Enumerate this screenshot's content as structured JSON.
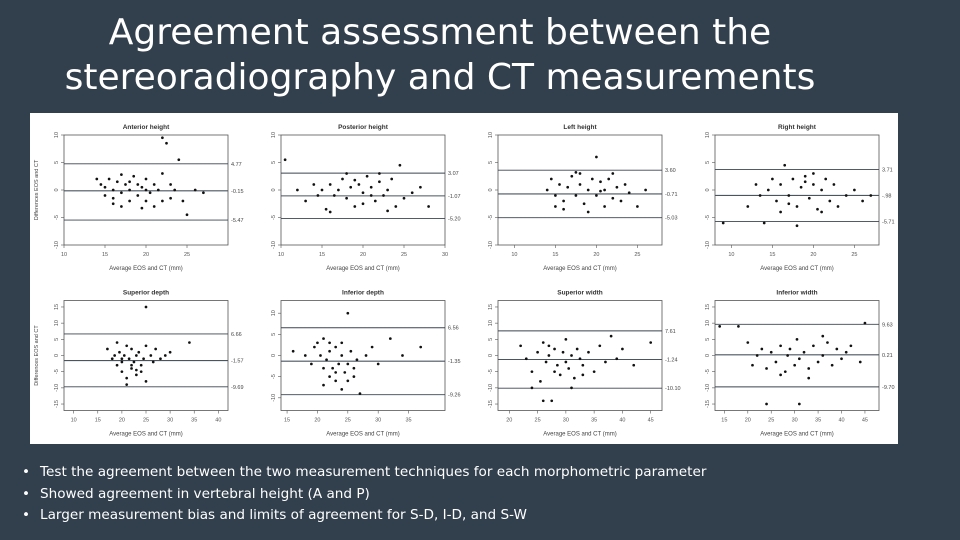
{
  "title_line1": "Agreement assessment between the",
  "title_line2": "stereoradiography and CT measurements",
  "bullets": [
    "Test the agreement between the two measurement techniques for each morphometric parameter",
    "Showed agreement in vertebral height (A and P)",
    "Larger measurement bias and limits of agreement for S-D, I-D, and S-W"
  ],
  "colors": {
    "background": "#323f4d",
    "text": "#ffffff",
    "points": "#111111",
    "bias_line": "#4a5560",
    "loa_line": "#3a4550"
  },
  "chart_data": [
    {
      "type": "scatter",
      "title": "Anterior height",
      "xlabel": "Average EOS and CT (mm)",
      "ylabel": "Differences EOS and CT",
      "xlim": [
        10,
        30
      ],
      "ylim": [
        -10,
        10
      ],
      "xticks": [
        "10",
        "15",
        "20",
        "25"
      ],
      "yticks": [
        "-10",
        "-5",
        "0",
        "5",
        "10"
      ],
      "lines": [
        {
          "y": 4.77,
          "label": "4.77"
        },
        {
          "y": -0.15,
          "label": "-0.15"
        },
        {
          "y": -5.47,
          "label": "-5.47"
        }
      ],
      "points": [
        [
          14,
          2
        ],
        [
          14.5,
          1
        ],
        [
          15,
          0.5
        ],
        [
          15,
          -1
        ],
        [
          15.5,
          2
        ],
        [
          16,
          0
        ],
        [
          16,
          -1.5
        ],
        [
          16.5,
          1.5
        ],
        [
          17,
          -0.5
        ],
        [
          17,
          -3
        ],
        [
          17.5,
          1
        ],
        [
          18,
          0
        ],
        [
          18,
          -2
        ],
        [
          18.5,
          2.5
        ],
        [
          19,
          -1
        ],
        [
          19,
          1
        ],
        [
          19.5,
          0.5
        ],
        [
          20,
          -2
        ],
        [
          20,
          2
        ],
        [
          20.5,
          -0.5
        ],
        [
          21,
          1
        ],
        [
          21,
          -3
        ],
        [
          21.5,
          0
        ],
        [
          22,
          9.5
        ],
        [
          22.5,
          8.5
        ],
        [
          22,
          3
        ],
        [
          23,
          1
        ],
        [
          23,
          -1.5
        ],
        [
          23.5,
          0
        ],
        [
          24,
          5.5
        ],
        [
          24.5,
          -2
        ],
        [
          25,
          -4.5
        ],
        [
          26,
          0
        ],
        [
          27,
          -0.5
        ],
        [
          16,
          -2.5
        ],
        [
          18,
          1.5
        ],
        [
          20,
          0
        ],
        [
          22,
          -2
        ],
        [
          17,
          2.8
        ],
        [
          19.5,
          -3.3
        ]
      ]
    },
    {
      "type": "scatter",
      "title": "Posterior height",
      "xlabel": "Average EOS and CT (mm)",
      "ylabel": "",
      "xlim": [
        10,
        30
      ],
      "ylim": [
        -10,
        10
      ],
      "xticks": [
        "10",
        "15",
        "20",
        "25",
        "30"
      ],
      "yticks": [
        "-10",
        "-5",
        "0",
        "5",
        "10"
      ],
      "lines": [
        {
          "y": 3.07,
          "label": "3.07"
        },
        {
          "y": -1.07,
          "label": "-1.07"
        },
        {
          "y": -5.2,
          "label": "-5.20"
        }
      ],
      "points": [
        [
          10.5,
          5.5
        ],
        [
          12,
          0
        ],
        [
          13,
          -2
        ],
        [
          14,
          1
        ],
        [
          14.5,
          -1
        ],
        [
          15,
          0
        ],
        [
          15.5,
          -3.5
        ],
        [
          16,
          1
        ],
        [
          16.5,
          -1
        ],
        [
          17,
          0
        ],
        [
          17.5,
          2
        ],
        [
          18,
          -1.5
        ],
        [
          18.5,
          0.5
        ],
        [
          19,
          -3
        ],
        [
          19.5,
          1
        ],
        [
          20,
          -0.5
        ],
        [
          20.5,
          2.5
        ],
        [
          21,
          -1
        ],
        [
          21,
          0.5
        ],
        [
          21.5,
          -2
        ],
        [
          22,
          1.5
        ],
        [
          22.5,
          -1
        ],
        [
          23,
          0
        ],
        [
          23.5,
          2
        ],
        [
          24,
          -3
        ],
        [
          24.5,
          4.5
        ],
        [
          25,
          -1.5
        ],
        [
          26,
          -0.5
        ],
        [
          27,
          0.5
        ],
        [
          28,
          -3
        ],
        [
          16,
          -4
        ],
        [
          18,
          3
        ],
        [
          20,
          -2.5
        ],
        [
          22,
          3
        ],
        [
          19,
          1.8
        ],
        [
          23,
          -3.8
        ]
      ]
    },
    {
      "type": "scatter",
      "title": "Left height",
      "xlabel": "Average EOS and CT (mm)",
      "ylabel": "",
      "xlim": [
        8,
        28
      ],
      "ylim": [
        -10,
        10
      ],
      "xticks": [
        "10",
        "15",
        "20",
        "25"
      ],
      "yticks": [
        "-10",
        "-5",
        "0",
        "5",
        "10"
      ],
      "lines": [
        {
          "y": 3.6,
          "label": "3.60"
        },
        {
          "y": -0.71,
          "label": "-0.71"
        },
        {
          "y": -5.03,
          "label": "-5.03"
        }
      ],
      "points": [
        [
          14,
          0
        ],
        [
          14.5,
          2
        ],
        [
          15,
          -1
        ],
        [
          15.5,
          1
        ],
        [
          16,
          -2
        ],
        [
          16.5,
          0.5
        ],
        [
          17,
          2.5
        ],
        [
          17.5,
          -1
        ],
        [
          18,
          1
        ],
        [
          18.5,
          -2.5
        ],
        [
          19,
          0
        ],
        [
          19.5,
          2
        ],
        [
          20,
          -1
        ],
        [
          20,
          6
        ],
        [
          20.5,
          1.5
        ],
        [
          21,
          -3
        ],
        [
          21,
          0
        ],
        [
          21.5,
          2
        ],
        [
          22,
          -1.5
        ],
        [
          22.5,
          0.5
        ],
        [
          23,
          -2
        ],
        [
          23.5,
          1
        ],
        [
          24,
          -0.5
        ],
        [
          25,
          -3
        ],
        [
          26,
          0
        ],
        [
          16,
          -3.5
        ],
        [
          18,
          3
        ],
        [
          19,
          -4
        ],
        [
          20.5,
          -0.2
        ],
        [
          17.5,
          3.2
        ],
        [
          22,
          3
        ],
        [
          15,
          -3
        ]
      ]
    },
    {
      "type": "scatter",
      "title": "Right height",
      "xlabel": "Average EOS and CT (mm)",
      "ylabel": "",
      "xlim": [
        8,
        28
      ],
      "ylim": [
        -10,
        10
      ],
      "xticks": [
        "10",
        "15",
        "20",
        "25"
      ],
      "yticks": [
        "-10",
        "-5",
        "0",
        "5",
        "10"
      ],
      "lines": [
        {
          "y": 3.71,
          "label": "3.71"
        },
        {
          "y": -0.98,
          "label": "-.98"
        },
        {
          "y": -5.71,
          "label": "-5.71"
        }
      ],
      "points": [
        [
          9,
          -6
        ],
        [
          12,
          -3
        ],
        [
          13,
          1
        ],
        [
          13.5,
          -1
        ],
        [
          14,
          -6
        ],
        [
          14.5,
          0
        ],
        [
          15,
          2
        ],
        [
          15.5,
          -2
        ],
        [
          16,
          1
        ],
        [
          16.5,
          4.5
        ],
        [
          17,
          -1
        ],
        [
          17.5,
          2
        ],
        [
          18,
          -3
        ],
        [
          18.5,
          0.5
        ],
        [
          19,
          2.5
        ],
        [
          19.5,
          -1.5
        ],
        [
          20,
          1
        ],
        [
          20.5,
          -3.5
        ],
        [
          21,
          0
        ],
        [
          21.5,
          2
        ],
        [
          22,
          -2
        ],
        [
          22.5,
          1
        ],
        [
          23,
          -3
        ],
        [
          24,
          -1
        ],
        [
          25,
          0
        ],
        [
          26,
          -2
        ],
        [
          27,
          -1
        ],
        [
          16,
          -4
        ],
        [
          18,
          -6.5
        ],
        [
          20,
          3
        ],
        [
          21,
          -4
        ],
        [
          19,
          1.5
        ],
        [
          17,
          -2.5
        ]
      ]
    },
    {
      "type": "scatter",
      "title": "Superior depth",
      "xlabel": "Average EOS and CT (mm)",
      "ylabel": "Differences EOS and CT",
      "xlim": [
        8,
        42
      ],
      "ylim": [
        -17,
        17
      ],
      "xticks": [
        "10",
        "15",
        "20",
        "25",
        "30",
        "35",
        "40"
      ],
      "yticks": [
        "-15",
        "-10",
        "-5",
        "0",
        "5",
        "10",
        "15"
      ],
      "lines": [
        {
          "y": 6.66,
          "label": "6.66"
        },
        {
          "y": -1.57,
          "label": "-1.57"
        },
        {
          "y": -9.69,
          "label": "-9.69"
        }
      ],
      "points": [
        [
          17,
          2
        ],
        [
          18,
          -1
        ],
        [
          18.5,
          0
        ],
        [
          19,
          -3
        ],
        [
          19.5,
          1
        ],
        [
          20,
          -2
        ],
        [
          20,
          -5
        ],
        [
          20.5,
          0
        ],
        [
          21,
          3
        ],
        [
          21,
          -7
        ],
        [
          21.5,
          -1
        ],
        [
          22,
          -4
        ],
        [
          22,
          2
        ],
        [
          22.5,
          -2
        ],
        [
          23,
          0
        ],
        [
          23,
          -6
        ],
        [
          23.5,
          1
        ],
        [
          24,
          -3
        ],
        [
          24.5,
          -1
        ],
        [
          25,
          -8
        ],
        [
          25,
          15
        ],
        [
          26,
          0
        ],
        [
          26.5,
          -2
        ],
        [
          27,
          2
        ],
        [
          28,
          -1
        ],
        [
          29,
          0
        ],
        [
          30,
          1
        ],
        [
          34,
          4
        ],
        [
          19,
          4
        ],
        [
          21,
          -9
        ],
        [
          22,
          -3
        ],
        [
          24,
          -5
        ],
        [
          20,
          -1
        ],
        [
          23,
          -4.5
        ],
        [
          25,
          3
        ]
      ]
    },
    {
      "type": "scatter",
      "title": "Inferior depth",
      "xlabel": "Average EOS and CT (mm)",
      "ylabel": "",
      "xlim": [
        14,
        41
      ],
      "ylim": [
        -13,
        13
      ],
      "xticks": [
        "15",
        "20",
        "25",
        "30",
        "35"
      ],
      "yticks": [
        "-10",
        "-5",
        "0",
        "5",
        "10"
      ],
      "lines": [
        {
          "y": 6.56,
          "label": "6.56"
        },
        {
          "y": -1.35,
          "label": "-1.35"
        },
        {
          "y": -9.26,
          "label": "-9.26"
        }
      ],
      "points": [
        [
          16,
          1
        ],
        [
          18,
          0
        ],
        [
          19,
          -2
        ],
        [
          19.5,
          2
        ],
        [
          20,
          3
        ],
        [
          20.5,
          0
        ],
        [
          21,
          -3
        ],
        [
          21,
          4
        ],
        [
          21.5,
          -1
        ],
        [
          22,
          -5
        ],
        [
          22,
          1
        ],
        [
          22.5,
          -3
        ],
        [
          23,
          -6
        ],
        [
          23,
          2
        ],
        [
          23.5,
          -2
        ],
        [
          24,
          -8
        ],
        [
          24,
          0
        ],
        [
          24.5,
          -4
        ],
        [
          25,
          10
        ],
        [
          25,
          -6
        ],
        [
          25.5,
          1
        ],
        [
          26,
          -3
        ],
        [
          26.5,
          -1
        ],
        [
          27,
          -9
        ],
        [
          28,
          0
        ],
        [
          29,
          2
        ],
        [
          30,
          -2
        ],
        [
          32,
          4
        ],
        [
          34,
          0
        ],
        [
          37,
          2
        ],
        [
          22,
          3
        ],
        [
          23,
          -4
        ],
        [
          25,
          -2
        ],
        [
          24,
          3
        ],
        [
          26,
          -5
        ],
        [
          21,
          -7
        ]
      ]
    },
    {
      "type": "scatter",
      "title": "Superior width",
      "xlabel": "Average EOS and CT (mm)",
      "ylabel": "",
      "xlim": [
        18,
        47
      ],
      "ylim": [
        -17,
        17
      ],
      "xticks": [
        "20",
        "25",
        "30",
        "35",
        "40",
        "45"
      ],
      "yticks": [
        "-15",
        "-10",
        "-5",
        "0",
        "5",
        "10",
        "15"
      ],
      "lines": [
        {
          "y": 7.61,
          "label": "7.61"
        },
        {
          "y": -1.24,
          "label": "-1.24"
        },
        {
          "y": -10.1,
          "label": "-10.10"
        }
      ],
      "points": [
        [
          22,
          3
        ],
        [
          23,
          -1
        ],
        [
          24,
          -5
        ],
        [
          25,
          1
        ],
        [
          25.5,
          -8
        ],
        [
          26,
          4
        ],
        [
          26.5,
          -2
        ],
        [
          27,
          0
        ],
        [
          27.5,
          -14
        ],
        [
          28,
          2
        ],
        [
          28.5,
          -3
        ],
        [
          29,
          -6
        ],
        [
          29.5,
          1
        ],
        [
          30,
          -2
        ],
        [
          30,
          5
        ],
        [
          30.5,
          -4
        ],
        [
          31,
          0
        ],
        [
          31.5,
          -7
        ],
        [
          32,
          2
        ],
        [
          32.5,
          -1
        ],
        [
          33,
          -3
        ],
        [
          34,
          1
        ],
        [
          35,
          -5
        ],
        [
          36,
          3
        ],
        [
          37,
          -2
        ],
        [
          38,
          6
        ],
        [
          39,
          -1
        ],
        [
          40,
          2
        ],
        [
          42,
          -3
        ],
        [
          45,
          4
        ],
        [
          26,
          -14
        ],
        [
          24,
          -10
        ],
        [
          31,
          -10
        ],
        [
          28,
          -5
        ],
        [
          33,
          -6
        ],
        [
          27,
          3
        ]
      ]
    },
    {
      "type": "scatter",
      "title": "Inferior width",
      "xlabel": "Average EOS and CT (mm)",
      "ylabel": "",
      "xlim": [
        13,
        48
      ],
      "ylim": [
        -17,
        17
      ],
      "xticks": [
        "15",
        "20",
        "25",
        "30",
        "35",
        "40",
        "45"
      ],
      "yticks": [
        "-15",
        "-10",
        "-5",
        "0",
        "5",
        "10",
        "15"
      ],
      "lines": [
        {
          "y": 9.63,
          "label": "9.63"
        },
        {
          "y": 0.21,
          "label": "0.21"
        },
        {
          "y": -9.7,
          "label": "-9.70"
        }
      ],
      "points": [
        [
          14,
          9
        ],
        [
          18,
          9
        ],
        [
          20,
          4
        ],
        [
          21,
          -3
        ],
        [
          22,
          0
        ],
        [
          23,
          2
        ],
        [
          24,
          -4
        ],
        [
          25,
          1
        ],
        [
          26,
          -2
        ],
        [
          27,
          3
        ],
        [
          28,
          -5
        ],
        [
          28.5,
          0
        ],
        [
          29,
          2
        ],
        [
          30,
          -3
        ],
        [
          30.5,
          5
        ],
        [
          31,
          -1
        ],
        [
          32,
          1
        ],
        [
          33,
          -4
        ],
        [
          34,
          3
        ],
        [
          35,
          -2
        ],
        [
          36,
          0
        ],
        [
          37,
          4
        ],
        [
          38,
          -3
        ],
        [
          39,
          2
        ],
        [
          40,
          -1
        ],
        [
          41,
          1
        ],
        [
          42,
          3
        ],
        [
          44,
          -2
        ],
        [
          45,
          10
        ],
        [
          24,
          -15
        ],
        [
          31,
          -15
        ],
        [
          27,
          -6
        ],
        [
          33,
          -7
        ],
        [
          36,
          6
        ]
      ]
    }
  ]
}
